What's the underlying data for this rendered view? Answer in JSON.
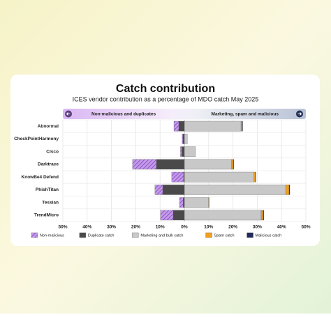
{
  "chart_data": {
    "type": "diverging-bar",
    "title": "Catch contribution",
    "subtitle": "ICES vendor contribution as a percentage of MDO catch May 2025",
    "left_header": "Non-malicious and duplicates",
    "right_header": "Marketing, spam and malicious",
    "categories": [
      "Abnormal",
      "CheckPointHarmony",
      "Cisco",
      "Darktrace",
      "KnowBe4 Defend",
      "PhishTitan",
      "Tessian",
      "TrendMicro"
    ],
    "series": [
      {
        "name": "Non-malicious",
        "color": "#c49ae8",
        "hatch": true,
        "values": [
          -2,
          -0.3,
          -0.5,
          -9.8,
          -4.9,
          -3.2,
          -1.5,
          -5.2
        ]
      },
      {
        "name": "Duplicate catch",
        "color": "#4a4a4a",
        "values": [
          -2.3,
          -0.6,
          -1.1,
          -11.5,
          -0.3,
          -8.9,
          -0.5,
          -4.6
        ]
      },
      {
        "name": "Marketing and bulk catch",
        "color": "#c8c8c8",
        "values": [
          23.3,
          1.2,
          4.6,
          19.5,
          28.7,
          41.7,
          10,
          31.6
        ]
      },
      {
        "name": "Spam catch",
        "color": "#f0a020",
        "values": [
          0.5,
          0,
          0,
          0.6,
          0.5,
          1.4,
          0.3,
          0.8
        ]
      },
      {
        "name": "Malicious catch",
        "color": "#1f2a5a",
        "values": [
          0.2,
          0,
          0,
          0.2,
          0.2,
          0.3,
          0,
          0.3
        ]
      }
    ],
    "xlim": [
      -50,
      50
    ],
    "xticks": [
      {
        "value": -50,
        "label": "50%"
      },
      {
        "value": -40,
        "label": "40%"
      },
      {
        "value": -30,
        "label": "30%"
      },
      {
        "value": -20,
        "label": "20%"
      },
      {
        "value": -10,
        "label": "10%"
      },
      {
        "value": 0,
        "label": "0%"
      },
      {
        "value": 10,
        "label": "10%"
      },
      {
        "value": 20,
        "label": "20%"
      },
      {
        "value": 30,
        "label": "30%"
      },
      {
        "value": 40,
        "label": "40%"
      },
      {
        "value": 50,
        "label": "50%"
      }
    ],
    "grid": true
  }
}
